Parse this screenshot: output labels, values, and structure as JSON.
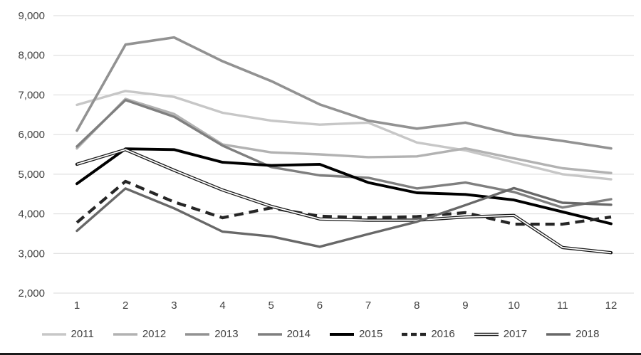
{
  "chart_data": {
    "type": "line",
    "title": "",
    "xlabel": "",
    "ylabel": "",
    "x_categories": [
      "1",
      "2",
      "3",
      "4",
      "5",
      "6",
      "7",
      "8",
      "9",
      "10",
      "11",
      "12"
    ],
    "y_axis": {
      "min": 2000,
      "max": 9000,
      "step": 1000,
      "tick_values": [
        2000,
        3000,
        4000,
        5000,
        6000,
        7000,
        8000,
        9000
      ],
      "tick_labels": [
        "2,000",
        "3,000",
        "4,000",
        "5,000",
        "6,000",
        "7,000",
        "8,000",
        "9,000"
      ]
    },
    "grid": true,
    "legend_position": "bottom",
    "colors": {
      "grid_line": "#d9d9d9",
      "axis_text": "#404040",
      "background": "#ffffff"
    },
    "series": [
      {
        "name": "2011",
        "color": "#c7c7c7",
        "style": "solid",
        "width": 3.4,
        "values": [
          6750,
          7100,
          6950,
          6550,
          6350,
          6250,
          6300,
          5800,
          5600,
          5300,
          5000,
          4870
        ]
      },
      {
        "name": "2012",
        "color": "#b2b2b2",
        "style": "solid",
        "width": 3.4,
        "values": [
          5650,
          6900,
          6520,
          5750,
          5550,
          5500,
          5430,
          5450,
          5650,
          5400,
          5150,
          5030
        ]
      },
      {
        "name": "2013",
        "color": "#929292",
        "style": "solid",
        "width": 3.6,
        "values": [
          6100,
          8270,
          8450,
          7850,
          7350,
          6760,
          6350,
          6150,
          6300,
          6000,
          5840,
          5650
        ]
      },
      {
        "name": "2014",
        "color": "#7f7f7f",
        "style": "solid",
        "width": 3.4,
        "values": [
          5700,
          6870,
          6450,
          5720,
          5180,
          4970,
          4910,
          4640,
          4790,
          4550,
          4160,
          4370
        ]
      },
      {
        "name": "2015",
        "color": "#000000",
        "style": "solid",
        "width": 3.9,
        "values": [
          4760,
          5640,
          5620,
          5300,
          5220,
          5250,
          4790,
          4530,
          4490,
          4350,
          4050,
          3750
        ]
      },
      {
        "name": "2016",
        "color": "#262626",
        "style": "dashed",
        "width": 4.2,
        "values": [
          3780,
          4820,
          4300,
          3900,
          4150,
          3940,
          3900,
          3930,
          4030,
          3740,
          3740,
          3920
        ]
      },
      {
        "name": "2017",
        "color": "#1a1a1a",
        "style": "double",
        "width": 4.4,
        "values": [
          5250,
          5620,
          5100,
          4600,
          4190,
          3870,
          3840,
          3840,
          3920,
          3960,
          3150,
          3020
        ]
      },
      {
        "name": "2018",
        "color": "#686868",
        "style": "solid",
        "width": 3.4,
        "values": [
          3570,
          4640,
          4140,
          3550,
          3430,
          3170,
          3490,
          3800,
          4220,
          4650,
          4280,
          4230
        ]
      }
    ]
  }
}
